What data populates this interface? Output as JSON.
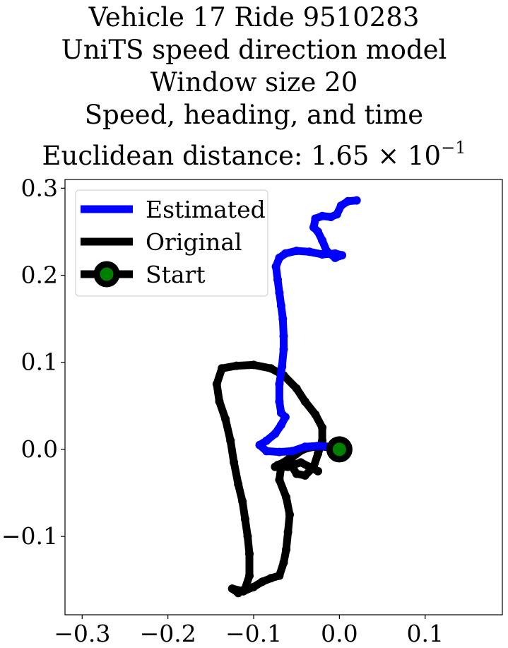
{
  "title_lines": {
    "line1": "Vehicle 17 Ride 9510283",
    "line2": "UniTS speed direction model",
    "line3": "Window size 20",
    "line4": "Speed, heading, and time",
    "line5_prefix": "Euclidean distance: 1.65 × 10",
    "line5_exp": "−1"
  },
  "chart_data": {
    "type": "line",
    "xlim": [
      -0.32,
      0.19
    ],
    "ylim": [
      -0.19,
      0.31
    ],
    "xticks": [
      {
        "v": -0.3,
        "label": "−0.3"
      },
      {
        "v": -0.2,
        "label": "−0.2"
      },
      {
        "v": -0.1,
        "label": "−0.1"
      },
      {
        "v": 0.0,
        "label": "0.0"
      },
      {
        "v": 0.1,
        "label": "0.1"
      }
    ],
    "yticks": [
      {
        "v": -0.1,
        "label": "−0.1"
      },
      {
        "v": 0.0,
        "label": "0.0"
      },
      {
        "v": 0.1,
        "label": "0.1"
      },
      {
        "v": 0.2,
        "label": "0.2"
      },
      {
        "v": 0.3,
        "label": "0.3"
      }
    ],
    "grid": false,
    "legend_position": "upper-left",
    "legend": [
      {
        "label": "Estimated",
        "color": "#0000ff",
        "marker": false
      },
      {
        "label": "Original",
        "color": "#000000",
        "marker": false
      },
      {
        "label": "Start",
        "color": "#000000",
        "marker": true,
        "marker_face": "#008000"
      }
    ],
    "series": [
      {
        "name": "Estimated",
        "color": "#0000ff",
        "points": [
          [
            0.0,
            0.0
          ],
          [
            -0.01,
            0.003
          ],
          [
            -0.025,
            0.004
          ],
          [
            -0.04,
            0.003
          ],
          [
            -0.055,
            -0.002
          ],
          [
            -0.07,
            -0.003
          ],
          [
            -0.085,
            -0.002
          ],
          [
            -0.093,
            0.005
          ],
          [
            -0.085,
            0.01
          ],
          [
            -0.075,
            0.018
          ],
          [
            -0.068,
            0.028
          ],
          [
            -0.063,
            0.037
          ],
          [
            -0.068,
            0.042
          ],
          [
            -0.07,
            0.055
          ],
          [
            -0.07,
            0.075
          ],
          [
            -0.067,
            0.095
          ],
          [
            -0.065,
            0.115
          ],
          [
            -0.065,
            0.13
          ],
          [
            -0.066,
            0.15
          ],
          [
            -0.068,
            0.165
          ],
          [
            -0.07,
            0.18
          ],
          [
            -0.072,
            0.195
          ],
          [
            -0.074,
            0.21
          ],
          [
            -0.07,
            0.22
          ],
          [
            -0.063,
            0.225
          ],
          [
            -0.05,
            0.228
          ],
          [
            -0.035,
            0.227
          ],
          [
            -0.02,
            0.224
          ],
          [
            -0.005,
            0.225
          ],
          [
            0.003,
            0.223
          ],
          [
            -0.005,
            0.22
          ],
          [
            -0.015,
            0.228
          ],
          [
            -0.02,
            0.24
          ],
          [
            -0.025,
            0.25
          ],
          [
            -0.03,
            0.255
          ],
          [
            -0.028,
            0.265
          ],
          [
            -0.02,
            0.268
          ],
          [
            -0.01,
            0.267
          ],
          [
            -0.003,
            0.27
          ],
          [
            0.002,
            0.28
          ],
          [
            0.01,
            0.285
          ],
          [
            0.02,
            0.286
          ]
        ]
      },
      {
        "name": "Original",
        "color": "#000000",
        "points": [
          [
            0.0,
            0.0
          ],
          [
            -0.015,
            0.003
          ],
          [
            -0.03,
            0.003
          ],
          [
            -0.042,
            0.0
          ],
          [
            -0.05,
            -0.005
          ],
          [
            -0.058,
            -0.012
          ],
          [
            -0.068,
            -0.02
          ],
          [
            -0.07,
            -0.035
          ],
          [
            -0.062,
            -0.055
          ],
          [
            -0.058,
            -0.075
          ],
          [
            -0.06,
            -0.095
          ],
          [
            -0.062,
            -0.115
          ],
          [
            -0.065,
            -0.13
          ],
          [
            -0.07,
            -0.145
          ],
          [
            -0.08,
            -0.148
          ],
          [
            -0.09,
            -0.152
          ],
          [
            -0.1,
            -0.158
          ],
          [
            -0.112,
            -0.163
          ],
          [
            -0.125,
            -0.16
          ],
          [
            -0.118,
            -0.165
          ],
          [
            -0.11,
            -0.16
          ],
          [
            -0.105,
            -0.145
          ],
          [
            -0.105,
            -0.12
          ],
          [
            -0.107,
            -0.1
          ],
          [
            -0.11,
            -0.08
          ],
          [
            -0.113,
            -0.06
          ],
          [
            -0.118,
            -0.04
          ],
          [
            -0.123,
            -0.015
          ],
          [
            -0.127,
            0.01
          ],
          [
            -0.133,
            0.035
          ],
          [
            -0.14,
            0.055
          ],
          [
            -0.143,
            0.075
          ],
          [
            -0.137,
            0.093
          ],
          [
            -0.12,
            0.096
          ],
          [
            -0.1,
            0.097
          ],
          [
            -0.08,
            0.093
          ],
          [
            -0.065,
            0.085
          ],
          [
            -0.05,
            0.07
          ],
          [
            -0.04,
            0.055
          ],
          [
            -0.028,
            0.04
          ],
          [
            -0.02,
            0.025
          ],
          [
            -0.02,
            0.01
          ],
          [
            -0.025,
            -0.005
          ],
          [
            -0.03,
            -0.02
          ],
          [
            -0.04,
            -0.03
          ],
          [
            -0.05,
            -0.028
          ],
          [
            -0.055,
            -0.02
          ],
          [
            -0.058,
            -0.01
          ],
          [
            -0.065,
            -0.015
          ],
          [
            -0.072,
            -0.018
          ],
          [
            -0.075,
            -0.02
          ],
          [
            -0.06,
            -0.02
          ],
          [
            -0.045,
            -0.015
          ],
          [
            -0.035,
            -0.02
          ],
          [
            -0.025,
            -0.025
          ]
        ]
      }
    ]
  }
}
